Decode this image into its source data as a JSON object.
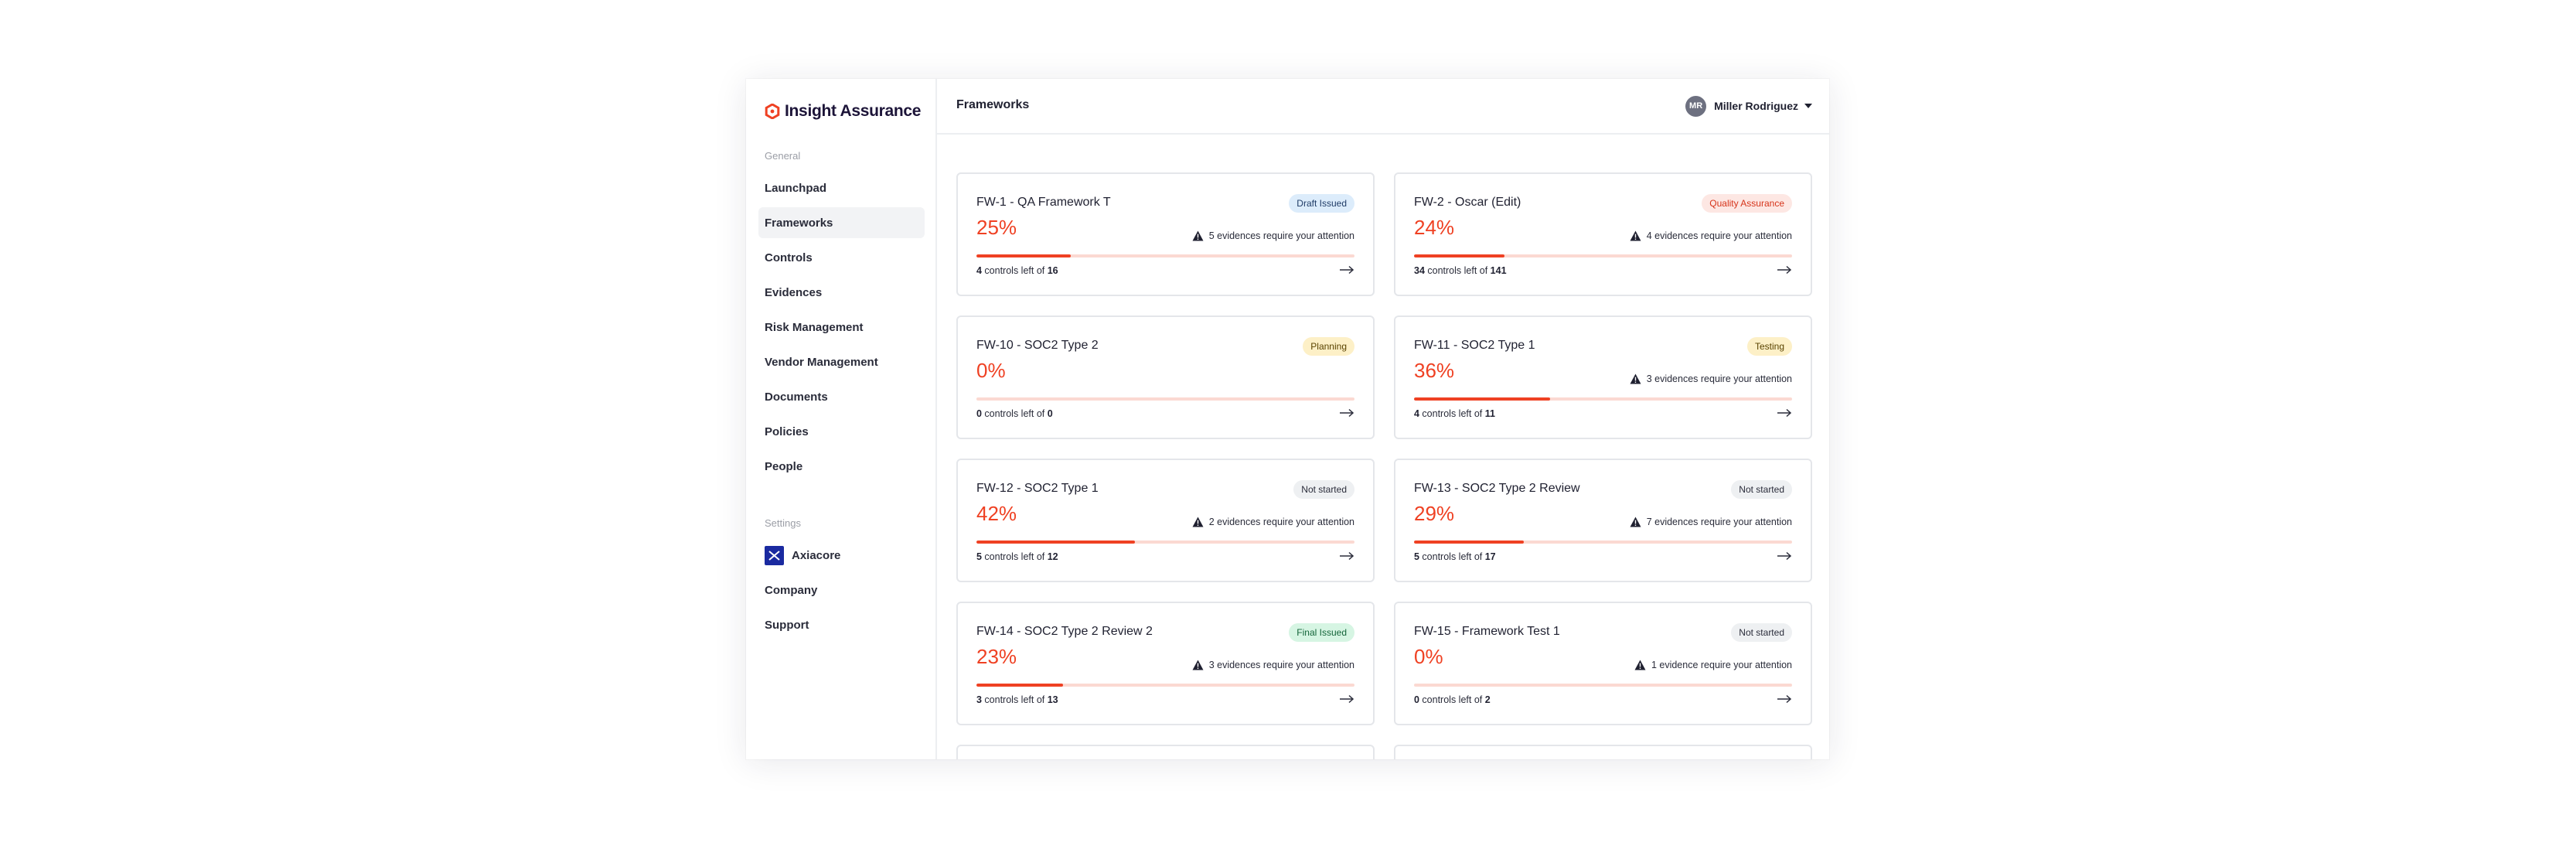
{
  "brand": {
    "name": "Insight Assurance",
    "accent": "#ef4123"
  },
  "sidebar": {
    "general_label": "General",
    "items": [
      {
        "label": "Launchpad"
      },
      {
        "label": "Frameworks"
      },
      {
        "label": "Controls"
      },
      {
        "label": "Evidences"
      },
      {
        "label": "Risk Management"
      },
      {
        "label": "Vendor Management"
      },
      {
        "label": "Documents"
      },
      {
        "label": "Policies"
      },
      {
        "label": "People"
      }
    ],
    "active": "Frameworks",
    "settings_label": "Settings",
    "settings_items": [
      {
        "label": "Axiacore",
        "icon": "axiacore-logo-icon"
      },
      {
        "label": "Company"
      },
      {
        "label": "Support"
      }
    ]
  },
  "header": {
    "title": "Frameworks",
    "user": {
      "initials": "MR",
      "name": "Miller Rodriguez"
    }
  },
  "controls_text": {
    "middle": " controls left of "
  },
  "frameworks": [
    {
      "title": "FW-1 - QA Framework T",
      "status": "Draft Issued",
      "percent": "25%",
      "progress": 0.25,
      "attention": "5 evidences require your attention",
      "remaining": "4",
      "total": "16"
    },
    {
      "title": "FW-2 - Oscar (Edit)",
      "status": "Quality Assurance",
      "percent": "24%",
      "progress": 0.24,
      "attention": "4 evidences require your attention",
      "remaining": "34",
      "total": "141"
    },
    {
      "title": "FW-10 - SOC2 Type 2",
      "status": "Planning",
      "percent": "0%",
      "progress": 0,
      "attention": "",
      "remaining": "0",
      "total": "0"
    },
    {
      "title": "FW-11 - SOC2 Type 1",
      "status": "Testing",
      "percent": "36%",
      "progress": 0.36,
      "attention": "3 evidences require your attention",
      "remaining": "4",
      "total": "11"
    },
    {
      "title": "FW-12 - SOC2 Type 1",
      "status": "Not started",
      "percent": "42%",
      "progress": 0.42,
      "attention": "2 evidences require your attention",
      "remaining": "5",
      "total": "12"
    },
    {
      "title": "FW-13 - SOC2 Type 2 Review",
      "status": "Not started",
      "percent": "29%",
      "progress": 0.29,
      "attention": "7 evidences require your attention",
      "remaining": "5",
      "total": "17"
    },
    {
      "title": "FW-14 - SOC2 Type 2 Review 2",
      "status": "Final Issued",
      "percent": "23%",
      "progress": 0.23,
      "attention": "3 evidences require your attention",
      "remaining": "3",
      "total": "13"
    },
    {
      "title": "FW-15 - Framework Test 1",
      "status": "Not started",
      "percent": "0%",
      "progress": 0,
      "attention": "1 evidence require your attention",
      "remaining": "0",
      "total": "2"
    }
  ],
  "status_colors": {
    "Draft Issued": {
      "bg": "#dcecfb",
      "fg": "#1f3b66"
    },
    "Quality Assurance": {
      "bg": "#fde7e3",
      "fg": "#d6341a"
    },
    "Planning": {
      "bg": "#fdf0c7",
      "fg": "#5a4300"
    },
    "Testing": {
      "bg": "#fdf0c7",
      "fg": "#5a4300"
    },
    "Not started": {
      "bg": "#eef0f2",
      "fg": "#2a2c3a"
    },
    "Final Issued": {
      "bg": "#d6f5e3",
      "fg": "#14653a"
    }
  }
}
